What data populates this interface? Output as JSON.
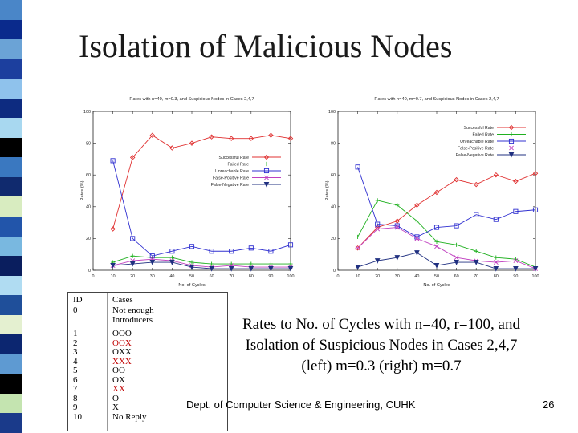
{
  "slide": {
    "title": "Isolation of Malicious Nodes",
    "caption_lines": [
      "Rates to No. of Cycles with n=40, r=100, and",
      "Isolation of Suspicious Nodes in Cases 2,4,7",
      "(left) m=0.3  (right) m=0.7"
    ],
    "footer": "Dept. of Computer Science & Engineering, CUHK",
    "page_number": "26",
    "stripe_colors": [
      "#4a86c8",
      "#0a2a8c",
      "#6ba3d6",
      "#1c3f9e",
      "#8fc2ec",
      "#0d2b80",
      "#a8d8f0",
      "#000000",
      "#3a78c0",
      "#102a6e",
      "#d8ecc0",
      "#2255aa",
      "#79b8e0",
      "#0a1e5e",
      "#b0dcf2",
      "#1f4f9a",
      "#e4f0d0",
      "#0c2670",
      "#5e9ad2",
      "#000000",
      "#c4e4b0",
      "#1a3a8a"
    ]
  },
  "id_table": {
    "header": {
      "id": "ID",
      "cases": "Cases"
    },
    "rows": [
      {
        "id": "0",
        "cases": [
          "Not enough",
          "Introducers"
        ],
        "color": "#000000"
      },
      {
        "id": "1",
        "cases": [
          "OOO"
        ],
        "color": "#000000"
      },
      {
        "id": "2",
        "cases": [
          "OOX"
        ],
        "color": "#c00000"
      },
      {
        "id": "3",
        "cases": [
          "OXX"
        ],
        "color": "#000000"
      },
      {
        "id": "4",
        "cases": [
          "XXX"
        ],
        "color": "#c00000"
      },
      {
        "id": "5",
        "cases": [
          "OO"
        ],
        "color": "#000000"
      },
      {
        "id": "6",
        "cases": [
          "OX"
        ],
        "color": "#000000"
      },
      {
        "id": "7",
        "cases": [
          "XX"
        ],
        "color": "#c00000"
      },
      {
        "id": "8",
        "cases": [
          "O"
        ],
        "color": "#000000"
      },
      {
        "id": "9",
        "cases": [
          "X"
        ],
        "color": "#000000"
      },
      {
        "id": "10",
        "cases": [
          "No Reply"
        ],
        "color": "#000000"
      }
    ]
  },
  "chart_data": [
    {
      "type": "line",
      "title": "Rates with n=40, m=0.3, and Suspicious Nodes in Cases 2,4,7",
      "xlabel": "No. of Cycles",
      "ylabel": "Rates (%)",
      "xlim": [
        0,
        100
      ],
      "ylim": [
        0,
        100
      ],
      "xticks": [
        0,
        10,
        20,
        30,
        40,
        50,
        60,
        70,
        80,
        90,
        100
      ],
      "yticks": [
        0,
        20,
        40,
        60,
        80,
        100
      ],
      "legend_position": "center-right",
      "x": [
        10,
        20,
        30,
        40,
        50,
        60,
        70,
        80,
        90,
        100
      ],
      "series": [
        {
          "name": "Successful Rate",
          "color": "#e03030",
          "marker": "diamond",
          "values": [
            26,
            71,
            85,
            77,
            80,
            84,
            83,
            83,
            85,
            83
          ]
        },
        {
          "name": "Failed Rate",
          "color": "#20b020",
          "marker": "plus",
          "values": [
            5,
            9,
            8,
            8,
            5,
            4,
            4,
            4,
            4,
            4
          ]
        },
        {
          "name": "Unreachable Rate",
          "color": "#3030d0",
          "marker": "square",
          "values": [
            69,
            20,
            9,
            12,
            15,
            12,
            12,
            14,
            12,
            16
          ]
        },
        {
          "name": "False-Positive Rate",
          "color": "#c040c0",
          "marker": "x",
          "values": [
            3,
            6,
            7,
            6,
            3,
            2,
            3,
            2,
            2,
            2
          ]
        },
        {
          "name": "False-Negative Rate",
          "color": "#203080",
          "marker": "triangle",
          "values": [
            3,
            4,
            5,
            5,
            2,
            1,
            1,
            1,
            1,
            1
          ]
        }
      ]
    },
    {
      "type": "line",
      "title": "Rates with n=40, m=0.7, and Suspicious Nodes in Cases 2,4,7",
      "xlabel": "No. of Cycles",
      "ylabel": "Rates (%)",
      "xlim": [
        0,
        100
      ],
      "ylim": [
        0,
        100
      ],
      "xticks": [
        0,
        10,
        20,
        30,
        40,
        50,
        60,
        70,
        80,
        90,
        100
      ],
      "yticks": [
        0,
        20,
        40,
        60,
        80,
        100
      ],
      "legend_position": "top-right",
      "x": [
        10,
        20,
        30,
        40,
        50,
        60,
        70,
        80,
        90,
        100
      ],
      "series": [
        {
          "name": "Successful Rate",
          "color": "#e03030",
          "marker": "diamond",
          "values": [
            14,
            27,
            31,
            41,
            49,
            57,
            54,
            60,
            56,
            61
          ]
        },
        {
          "name": "Failed Rate",
          "color": "#20b020",
          "marker": "plus",
          "values": [
            21,
            44,
            41,
            31,
            18,
            16,
            12,
            8,
            7,
            2
          ]
        },
        {
          "name": "Unreachable Rate",
          "color": "#3030d0",
          "marker": "square",
          "values": [
            65,
            29,
            28,
            21,
            27,
            28,
            35,
            32,
            37,
            38
          ]
        },
        {
          "name": "False-Positive Rate",
          "color": "#c040c0",
          "marker": "x",
          "values": [
            14,
            26,
            27,
            20,
            15,
            8,
            6,
            5,
            6,
            1
          ]
        },
        {
          "name": "False-Negative Rate",
          "color": "#203080",
          "marker": "triangle",
          "values": [
            2,
            6,
            8,
            11,
            3,
            5,
            5,
            1,
            1,
            1
          ]
        }
      ]
    }
  ]
}
